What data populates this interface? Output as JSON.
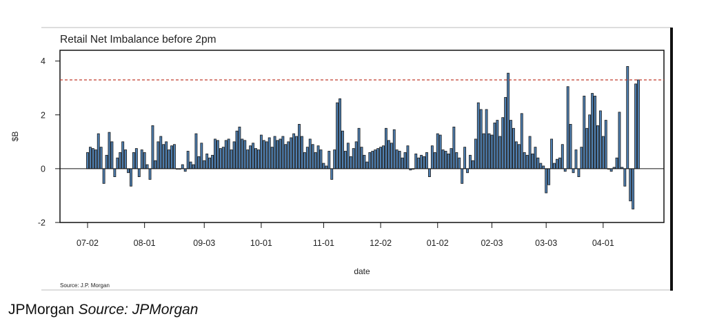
{
  "caption": {
    "publisher": "JPMorgan",
    "source_label": "Source: JPMorgan"
  },
  "chart_data": {
    "type": "bar",
    "title": "Retail Net Imbalance before 2pm",
    "xlabel": "date",
    "ylabel": "$B",
    "ylim": [
      -2,
      4.4
    ],
    "yticks": [
      -2,
      0,
      2,
      4
    ],
    "xtick_labels": [
      "07-02",
      "08-01",
      "09-03",
      "10-01",
      "11-01",
      "12-02",
      "01-02",
      "02-03",
      "03-03",
      "04-01"
    ],
    "xtick_positions": [
      0,
      21,
      43,
      64,
      87,
      108,
      129,
      149,
      169,
      190
    ],
    "reference_line": {
      "value": 3.3,
      "style": "dashed",
      "color": "#c0392b"
    },
    "source_note": "Source: J.P. Morgan",
    "grid": false,
    "bar_color": "#4f7fb0",
    "series": [
      {
        "values": [
          0.6,
          0.8,
          0.75,
          0.7,
          1.3,
          0.8,
          -0.55,
          0.5,
          1.35,
          1.0,
          -0.3,
          0.4,
          0.6,
          1.0,
          0.7,
          -0.15,
          -0.65,
          0.6,
          0.75,
          -0.3,
          0.7,
          0.6,
          0.15,
          -0.4,
          1.6,
          0.3,
          1.0,
          1.2,
          0.9,
          1.0,
          0.7,
          0.85,
          0.9,
          0.0,
          0.0,
          0.15,
          -0.1,
          0.65,
          0.25,
          0.15,
          1.3,
          0.45,
          0.95,
          0.3,
          0.55,
          0.4,
          0.5,
          1.1,
          1.05,
          0.75,
          0.8,
          1.05,
          1.1,
          0.7,
          1.0,
          1.4,
          1.55,
          1.1,
          1.05,
          0.7,
          0.85,
          0.95,
          0.75,
          0.7,
          1.25,
          1.05,
          1.0,
          1.15,
          0.8,
          1.2,
          1.05,
          1.1,
          1.2,
          0.9,
          1.0,
          1.15,
          1.3,
          1.2,
          1.65,
          1.2,
          0.6,
          0.8,
          1.1,
          0.9,
          0.6,
          0.85,
          0.7,
          0.2,
          0.1,
          0.65,
          -0.4,
          0.7,
          2.45,
          2.6,
          1.4,
          0.65,
          0.95,
          0.45,
          0.75,
          1.0,
          1.5,
          0.8,
          0.5,
          0.25,
          0.6,
          0.65,
          0.7,
          0.75,
          0.8,
          0.85,
          1.5,
          1.05,
          0.95,
          1.45,
          0.7,
          0.65,
          0.4,
          0.6,
          0.85,
          -0.05,
          0.0,
          0.55,
          0.4,
          0.5,
          0.45,
          0.6,
          -0.3,
          0.85,
          0.6,
          1.3,
          1.25,
          0.7,
          0.65,
          0.55,
          0.75,
          1.55,
          0.6,
          0.4,
          -0.55,
          0.8,
          -0.15,
          0.5,
          0.3,
          1.1,
          2.45,
          2.2,
          1.3,
          2.2,
          1.3,
          1.25,
          1.7,
          1.8,
          1.2,
          1.9,
          2.65,
          3.55,
          1.8,
          1.5,
          1.0,
          0.9,
          2.05,
          0.6,
          0.5,
          1.2,
          0.55,
          0.8,
          0.4,
          0.2,
          0.1,
          -0.9,
          -0.6,
          1.1,
          0.2,
          0.35,
          0.4,
          0.9,
          -0.1,
          3.05,
          1.65,
          -0.15,
          0.7,
          -0.3,
          0.8,
          2.7,
          1.5,
          2.0,
          2.8,
          2.7,
          1.6,
          2.15,
          1.2,
          1.8,
          0.0,
          -0.1,
          0.05,
          0.4,
          2.1,
          0.05,
          -0.65,
          3.8,
          -1.2,
          -1.5,
          3.15,
          3.3
        ]
      }
    ]
  }
}
